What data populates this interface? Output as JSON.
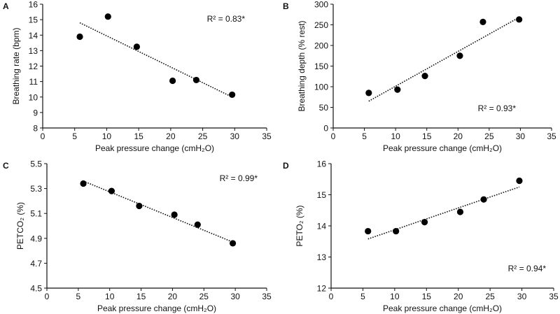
{
  "chart_data": [
    {
      "panel": "A",
      "type": "scatter",
      "xlabel": "Peak pressure change (cmH₂O)",
      "ylabel": "Breathing rate (bpm)",
      "xlim": [
        0,
        35
      ],
      "ylim": [
        8,
        16
      ],
      "xticks": [
        "0",
        "5",
        "10",
        "15",
        "20",
        "25",
        "30",
        "35"
      ],
      "yticks": [
        "8",
        "9",
        "10",
        "11",
        "12",
        "13",
        "14",
        "15",
        "16"
      ],
      "x": [
        5.8,
        10.2,
        14.7,
        20.3,
        24.0,
        29.6
      ],
      "y": [
        13.9,
        15.2,
        13.25,
        11.05,
        11.1,
        10.15
      ],
      "trendline": {
        "x": [
          5.8,
          29.6
        ],
        "y": [
          14.8,
          10.0
        ]
      },
      "annotation": "R² = 0.83*",
      "annotation_position": "top-right"
    },
    {
      "panel": "B",
      "type": "scatter",
      "xlabel": "Peak pressure change (cmH₂O)",
      "ylabel": "Breathing depth (% rest)",
      "xlim": [
        0,
        35
      ],
      "ylim": [
        0,
        300
      ],
      "xticks": [
        "0",
        "5",
        "10",
        "15",
        "20",
        "25",
        "30",
        "35"
      ],
      "yticks": [
        "0",
        "50",
        "100",
        "150",
        "200",
        "250",
        "300"
      ],
      "x": [
        5.7,
        10.3,
        14.7,
        20.3,
        24.0,
        29.8
      ],
      "y": [
        85,
        93,
        126,
        175,
        257,
        263
      ],
      "trendline": {
        "x": [
          5.7,
          29.8
        ],
        "y": [
          65,
          268
        ]
      },
      "annotation": "R² = 0.93*",
      "annotation_position": "bottom-right"
    },
    {
      "panel": "C",
      "type": "scatter",
      "xlabel": "Peak pressure change (cmH₂O)",
      "ylabel": "PETCO₂ (%)",
      "xlim": [
        0,
        35
      ],
      "ylim": [
        4.5,
        5.5
      ],
      "xticks": [
        "0",
        "5",
        "10",
        "15",
        "20",
        "25",
        "30",
        "35"
      ],
      "yticks": [
        "4.5",
        "4.7",
        "4.9",
        "5.1",
        "5.3",
        "5.5"
      ],
      "x": [
        5.8,
        10.3,
        14.7,
        20.3,
        24.0,
        29.6
      ],
      "y": [
        5.34,
        5.28,
        5.16,
        5.09,
        5.01,
        4.86
      ],
      "trendline": {
        "x": [
          5.8,
          29.6
        ],
        "y": [
          5.36,
          4.87
        ]
      },
      "annotation": "R² = 0.99*",
      "annotation_position": "top-right"
    },
    {
      "panel": "D",
      "type": "scatter",
      "xlabel": "Peak pressure change (cmH₂O)",
      "ylabel": "PETO₂ (%)",
      "xlim": [
        0,
        35
      ],
      "ylim": [
        12,
        16
      ],
      "xticks": [
        "0",
        "5",
        "10",
        "15",
        "20",
        "25",
        "30",
        "35"
      ],
      "yticks": [
        "12",
        "13",
        "14",
        "15",
        "16"
      ],
      "x": [
        5.8,
        10.2,
        14.7,
        20.3,
        24.0,
        29.6
      ],
      "y": [
        13.83,
        13.83,
        14.12,
        14.45,
        14.85,
        15.45
      ],
      "trendline": {
        "x": [
          5.8,
          29.6
        ],
        "y": [
          13.58,
          15.25
        ]
      },
      "annotation": "R² = 0.94*",
      "annotation_position": "bottom-right"
    }
  ]
}
